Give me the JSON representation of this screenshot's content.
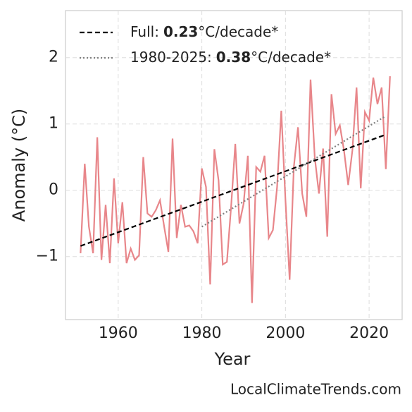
{
  "chart_data": {
    "type": "line",
    "x_label": "Year",
    "y_label": "Anomaly (°C)",
    "credit": "LocalClimateTrends.com",
    "xlim": [
      1947.4,
      2027.9
    ],
    "ylim": [
      -1.95,
      2.71
    ],
    "xticks": [
      1960,
      1980,
      2000,
      2020
    ],
    "yticks": [
      2,
      1,
      0,
      {
        "value": -1,
        "label": "−1"
      }
    ],
    "grid": true,
    "x": [
      1951,
      1952,
      1953,
      1954,
      1955,
      1956,
      1957,
      1958,
      1959,
      1960,
      1961,
      1962,
      1963,
      1964,
      1965,
      1966,
      1967,
      1968,
      1969,
      1970,
      1971,
      1972,
      1973,
      1974,
      1975,
      1976,
      1977,
      1978,
      1979,
      1980,
      1981,
      1982,
      1983,
      1984,
      1985,
      1986,
      1987,
      1988,
      1989,
      1990,
      1991,
      1992,
      1993,
      1994,
      1995,
      1996,
      1997,
      1998,
      1999,
      2000,
      2001,
      2002,
      2003,
      2004,
      2005,
      2006,
      2007,
      2008,
      2009,
      2010,
      2011,
      2012,
      2013,
      2014,
      2015,
      2016,
      2017,
      2018,
      2019,
      2020,
      2021,
      2022,
      2023,
      2024,
      2025
    ],
    "series": [
      {
        "color": "#e8868a",
        "values": [
          -0.95,
          0.4,
          -0.55,
          -0.95,
          0.8,
          -1.05,
          -0.22,
          -1.1,
          0.18,
          -0.8,
          -0.18,
          -1.1,
          -0.88,
          -1.05,
          -0.98,
          0.5,
          -0.35,
          -0.4,
          -0.3,
          -0.15,
          -0.55,
          -0.93,
          0.78,
          -0.72,
          -0.22,
          -0.55,
          -0.53,
          -0.62,
          -0.8,
          0.33,
          0.05,
          -1.42,
          0.62,
          0.15,
          -1.12,
          -1.08,
          -0.25,
          0.7,
          -0.5,
          -0.2,
          0.52,
          -1.7,
          0.35,
          0.28,
          0.52,
          -0.72,
          -0.6,
          0.05,
          1.2,
          -0.15,
          -1.35,
          0.35,
          0.95,
          -0.05,
          -0.4,
          1.67,
          0.5,
          -0.05,
          0.63,
          -0.7,
          1.45,
          0.85,
          0.98,
          0.6,
          0.08,
          0.6,
          1.55,
          0.03,
          1.18,
          1.05,
          1.7,
          1.3,
          1.55,
          0.32,
          1.72
        ]
      }
    ],
    "trends": [
      {
        "name": "Full:",
        "rate": "0.23",
        "unit": "°C/decade*",
        "color": "#000000",
        "style": "dashed",
        "x": [
          1951,
          2024
        ],
        "values": [
          -0.84,
          0.84
        ]
      },
      {
        "name": "1980-2025:",
        "rate": "0.38",
        "unit": "°C/decade*",
        "color": "#808080",
        "style": "dotted",
        "x": [
          1980,
          2024
        ],
        "values": [
          -0.55,
          1.12
        ]
      }
    ]
  }
}
